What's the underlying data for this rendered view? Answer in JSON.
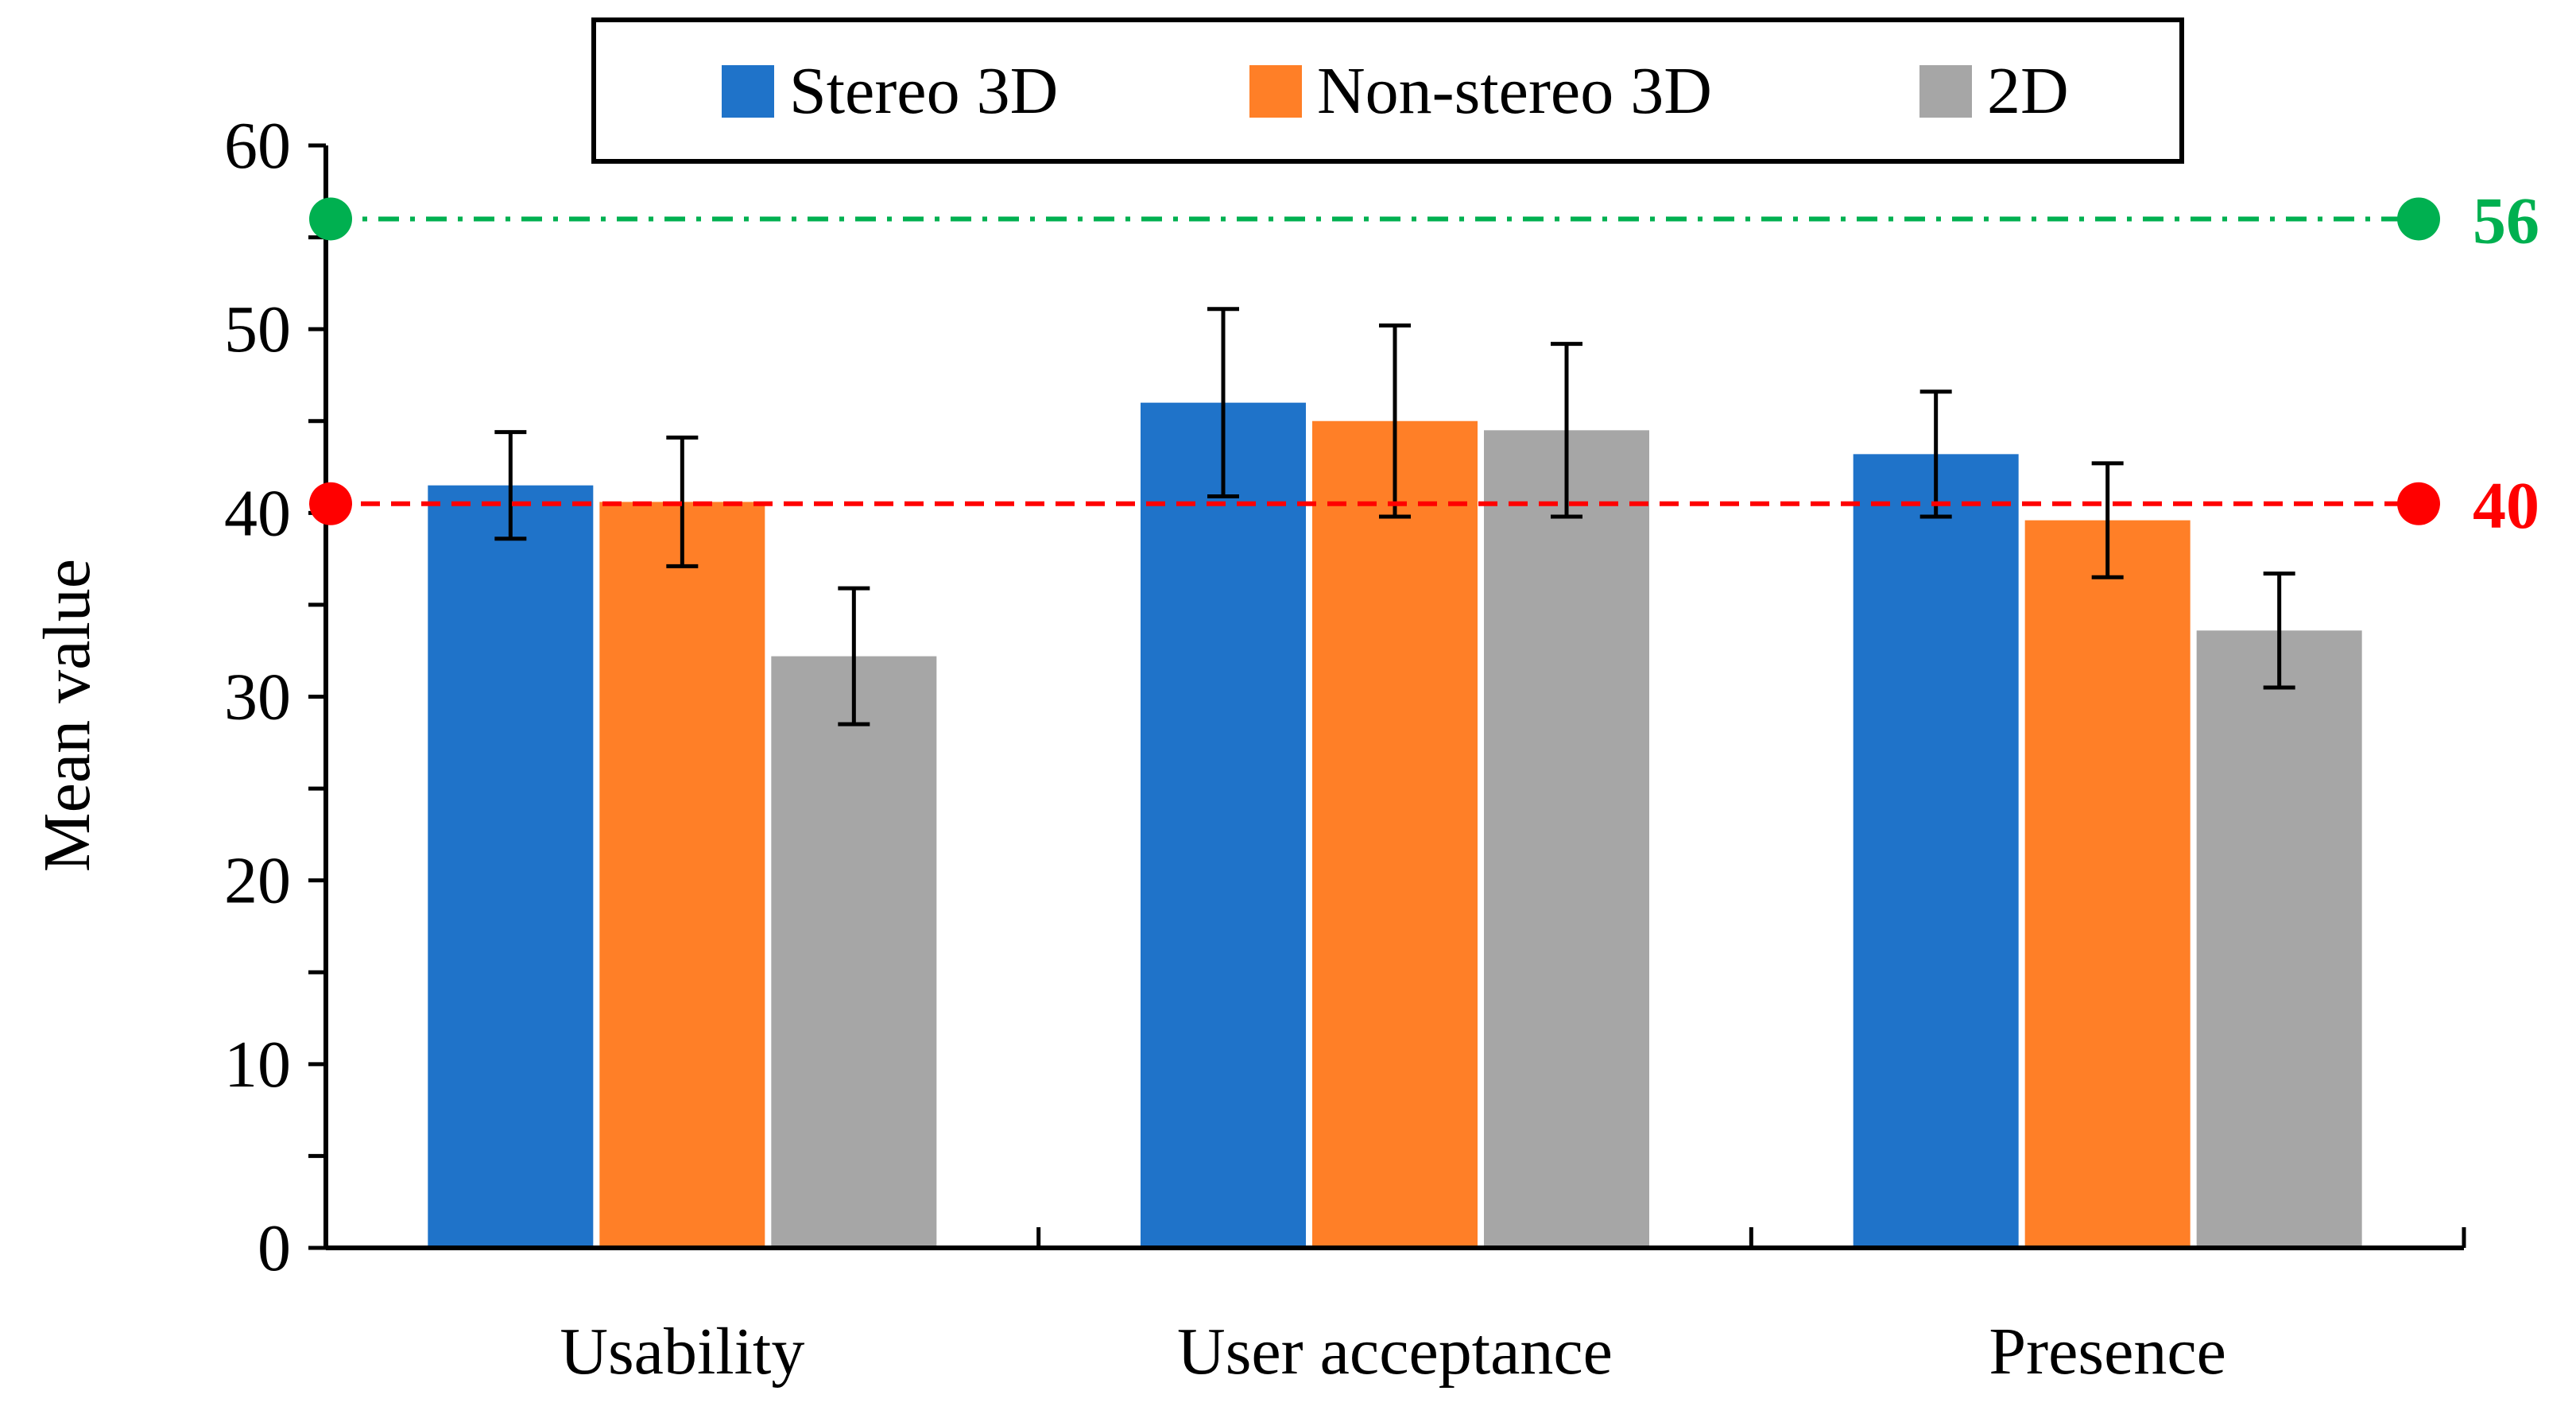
{
  "chart_data": {
    "type": "bar",
    "title": "",
    "xlabel": "",
    "ylabel": "Mean value",
    "ylim": [
      0,
      60
    ],
    "yticks": [
      0,
      10,
      20,
      30,
      40,
      50,
      60
    ],
    "ytick_labels": [
      "0",
      "10",
      "20",
      "30",
      "40",
      "50",
      "60"
    ],
    "minor_tick_step": 5,
    "categories": [
      "Usability",
      "User acceptance",
      "Presence"
    ],
    "series": [
      {
        "name": "Stereo 3D",
        "color": "#1f73c9",
        "values": [
          41.5,
          46.0,
          43.2
        ],
        "errors": [
          2.9,
          5.1,
          3.4
        ]
      },
      {
        "name": "Non-stereo 3D",
        "color": "#ff7f27",
        "values": [
          40.6,
          45.0,
          39.6
        ],
        "errors": [
          3.5,
          5.2,
          3.1
        ]
      },
      {
        "name": "2D",
        "color": "#a6a6a6",
        "values": [
          32.2,
          44.5,
          33.6
        ],
        "errors": [
          3.7,
          4.7,
          3.1
        ]
      }
    ],
    "reference_lines": [
      {
        "value": 56,
        "label": "56",
        "color": "#00b050",
        "style": "dash-dot"
      },
      {
        "value": 40.5,
        "label": "40",
        "color": "#ff0000",
        "style": "dashed"
      }
    ],
    "legend": {
      "position": "top-center",
      "boxed": true
    },
    "grid": false
  }
}
